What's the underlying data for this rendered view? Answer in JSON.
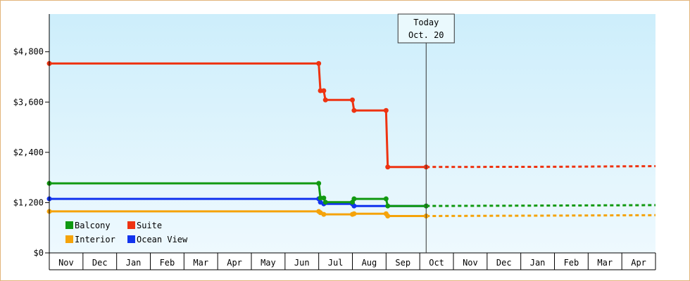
{
  "chart_data": {
    "type": "line",
    "title": "",
    "xlabel": "",
    "ylabel": "",
    "x_unit": "month",
    "months": [
      "Nov",
      "Dec",
      "Jan",
      "Feb",
      "Mar",
      "Apr",
      "May",
      "Jun",
      "Jul",
      "Aug",
      "Sep",
      "Oct",
      "Nov",
      "Dec",
      "Jan",
      "Feb",
      "Mar",
      "Apr"
    ],
    "ylim": [
      0,
      5700
    ],
    "yticks": [
      0,
      1200,
      2400,
      3600,
      4800
    ],
    "ytick_labels": [
      "$0",
      "$1,200",
      "$2,400",
      "$3,600",
      "$4,800"
    ],
    "grid": false,
    "legend_position": "bottom-left",
    "today": {
      "line1": "Today",
      "line2": "Oct. 20",
      "x": 11.19
    },
    "series": [
      {
        "name": "Balcony",
        "color": "#119911",
        "points": [
          [
            0,
            1660
          ],
          [
            8,
            1660
          ],
          [
            8.05,
            1310
          ],
          [
            8.15,
            1310
          ],
          [
            8.2,
            1210
          ],
          [
            9,
            1210
          ],
          [
            9.05,
            1290
          ],
          [
            10,
            1290
          ],
          [
            10.05,
            1120
          ],
          [
            11.19,
            1120
          ]
        ],
        "projection": [
          [
            11.19,
            1120
          ],
          [
            15.0,
            1130
          ],
          [
            18.0,
            1140
          ]
        ]
      },
      {
        "name": "Suite",
        "color": "#ee3311",
        "points": [
          [
            0,
            4520
          ],
          [
            8,
            4520
          ],
          [
            8.05,
            3870
          ],
          [
            8.15,
            3870
          ],
          [
            8.2,
            3650
          ],
          [
            9,
            3650
          ],
          [
            9.05,
            3400
          ],
          [
            10,
            3400
          ],
          [
            10.05,
            2050
          ],
          [
            11.19,
            2050
          ]
        ],
        "projection": [
          [
            11.19,
            2050
          ],
          [
            15.0,
            2055
          ],
          [
            18.0,
            2070
          ]
        ]
      },
      {
        "name": "Interior",
        "color": "#f5a30a",
        "points": [
          [
            0,
            990
          ],
          [
            8,
            990
          ],
          [
            8.05,
            960
          ],
          [
            8.15,
            920
          ],
          [
            9,
            920
          ],
          [
            9.05,
            935
          ],
          [
            10,
            935
          ],
          [
            10.05,
            880
          ],
          [
            11.19,
            880
          ]
        ],
        "projection": [
          [
            11.19,
            880
          ],
          [
            15.0,
            890
          ],
          [
            18.0,
            900
          ]
        ]
      },
      {
        "name": "Ocean View",
        "color": "#1133ee",
        "points": [
          [
            0,
            1290
          ],
          [
            8,
            1290
          ],
          [
            8.05,
            1210
          ],
          [
            8.15,
            1170
          ],
          [
            9,
            1170
          ],
          [
            9.05,
            1120
          ],
          [
            11.19,
            1120
          ]
        ],
        "projection": []
      }
    ]
  }
}
